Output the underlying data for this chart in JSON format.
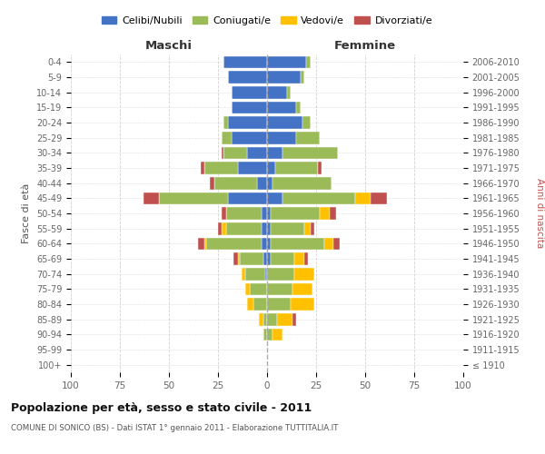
{
  "age_groups": [
    "100+",
    "95-99",
    "90-94",
    "85-89",
    "80-84",
    "75-79",
    "70-74",
    "65-69",
    "60-64",
    "55-59",
    "50-54",
    "45-49",
    "40-44",
    "35-39",
    "30-34",
    "25-29",
    "20-24",
    "15-19",
    "10-14",
    "5-9",
    "0-4"
  ],
  "birth_years": [
    "≤ 1910",
    "1911-1915",
    "1916-1920",
    "1921-1925",
    "1926-1930",
    "1931-1935",
    "1936-1940",
    "1941-1945",
    "1946-1950",
    "1951-1955",
    "1956-1960",
    "1961-1965",
    "1966-1970",
    "1971-1975",
    "1976-1980",
    "1981-1985",
    "1986-1990",
    "1991-1995",
    "1996-2000",
    "2001-2005",
    "2006-2010"
  ],
  "male": {
    "celibi": [
      0,
      0,
      0,
      0,
      0,
      0,
      1,
      2,
      3,
      3,
      3,
      20,
      5,
      15,
      10,
      18,
      20,
      18,
      18,
      20,
      22
    ],
    "coniugati": [
      0,
      0,
      2,
      2,
      7,
      9,
      10,
      12,
      28,
      18,
      18,
      35,
      22,
      17,
      12,
      5,
      2,
      0,
      0,
      0,
      0
    ],
    "vedovi": [
      0,
      0,
      0,
      2,
      3,
      2,
      2,
      1,
      1,
      2,
      0,
      0,
      0,
      0,
      0,
      0,
      0,
      0,
      0,
      0,
      0
    ],
    "divorziati": [
      0,
      0,
      0,
      0,
      0,
      0,
      0,
      2,
      3,
      2,
      2,
      8,
      2,
      2,
      1,
      0,
      0,
      0,
      0,
      0,
      0
    ]
  },
  "female": {
    "nubili": [
      0,
      0,
      0,
      0,
      0,
      0,
      0,
      2,
      2,
      2,
      2,
      8,
      3,
      4,
      8,
      15,
      18,
      15,
      10,
      17,
      20
    ],
    "coniugate": [
      0,
      0,
      3,
      5,
      12,
      13,
      14,
      12,
      27,
      17,
      25,
      37,
      30,
      22,
      28,
      12,
      4,
      2,
      2,
      2,
      2
    ],
    "vedove": [
      0,
      0,
      5,
      8,
      12,
      10,
      10,
      5,
      5,
      3,
      5,
      8,
      0,
      0,
      0,
      0,
      0,
      0,
      0,
      0,
      0
    ],
    "divorziate": [
      0,
      0,
      0,
      2,
      0,
      0,
      0,
      2,
      3,
      2,
      3,
      8,
      0,
      2,
      0,
      0,
      0,
      0,
      0,
      0,
      0
    ]
  },
  "colors": {
    "celibi": "#4472c4",
    "coniugati": "#9bbb59",
    "vedovi": "#ffc000",
    "divorziati": "#c0504d"
  },
  "xlim": 100,
  "title": "Popolazione per età, sesso e stato civile - 2011",
  "subtitle": "COMUNE DI SONICO (BS) - Dati ISTAT 1° gennaio 2011 - Elaborazione TUTTITALIA.IT",
  "ylabel_left": "Fasce di età",
  "ylabel_right": "Anni di nascita",
  "xlabel_left": "Maschi",
  "xlabel_right": "Femmine",
  "legend_labels": [
    "Celibi/Nubili",
    "Coniugati/e",
    "Vedovi/e",
    "Divorziati/e"
  ],
  "bg_color": "#ffffff",
  "grid_color": "#cccccc"
}
